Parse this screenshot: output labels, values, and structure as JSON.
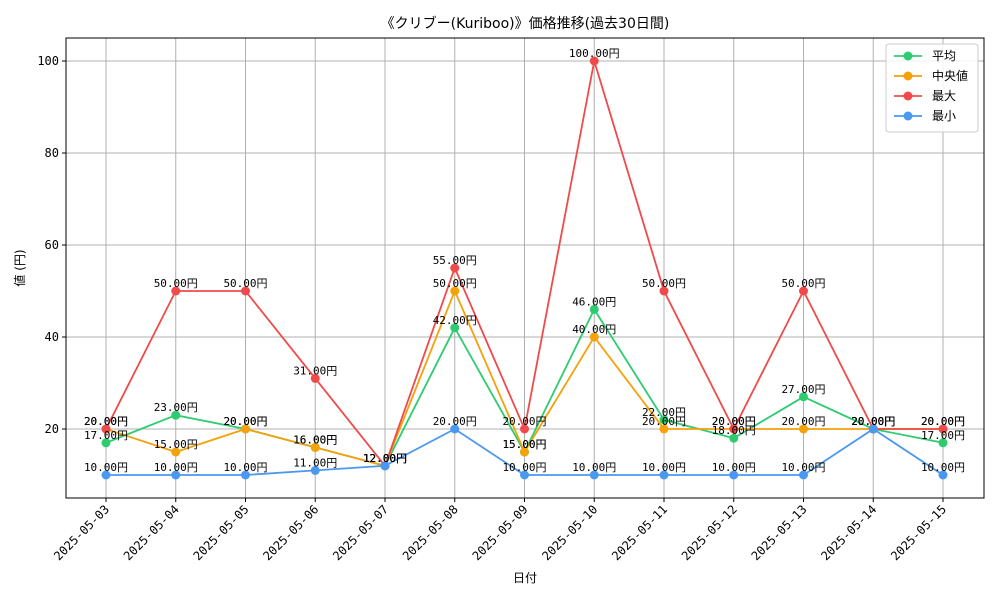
{
  "chart_data": {
    "type": "line",
    "title": "《クリブー(Kuriboo)》価格推移(過去30日間)",
    "xlabel": "日付",
    "ylabel": "値 (円)",
    "ylim": [
      5,
      105
    ],
    "yticks": [
      20,
      40,
      60,
      80,
      100
    ],
    "grid": true,
    "legend_position": "top-right",
    "value_suffix": "円",
    "categories": [
      "2025-05-03",
      "2025-05-04",
      "2025-05-05",
      "2025-05-06",
      "2025-05-07",
      "2025-05-08",
      "2025-05-09",
      "2025-05-10",
      "2025-05-11",
      "2025-05-12",
      "2025-05-13",
      "2025-05-14",
      "2025-05-15"
    ],
    "series": [
      {
        "name": "平均",
        "color": "#2ecc71",
        "values": [
          17,
          23,
          20,
          16,
          12,
          42,
          15,
          46,
          22,
          18,
          27,
          20,
          17
        ]
      },
      {
        "name": "中央値",
        "color": "#f5a10a",
        "values": [
          20,
          15,
          20,
          16,
          12,
          50,
          15,
          40,
          20,
          20,
          20,
          20,
          20
        ]
      },
      {
        "name": "最大",
        "color": "#f04a4a",
        "values": [
          20,
          50,
          50,
          31,
          12,
          55,
          20,
          100,
          50,
          20,
          50,
          20,
          20
        ]
      },
      {
        "name": "最小",
        "color": "#4a98f0",
        "values": [
          10,
          10,
          10,
          11,
          12,
          20,
          10,
          10,
          10,
          10,
          10,
          20,
          10
        ]
      }
    ]
  }
}
